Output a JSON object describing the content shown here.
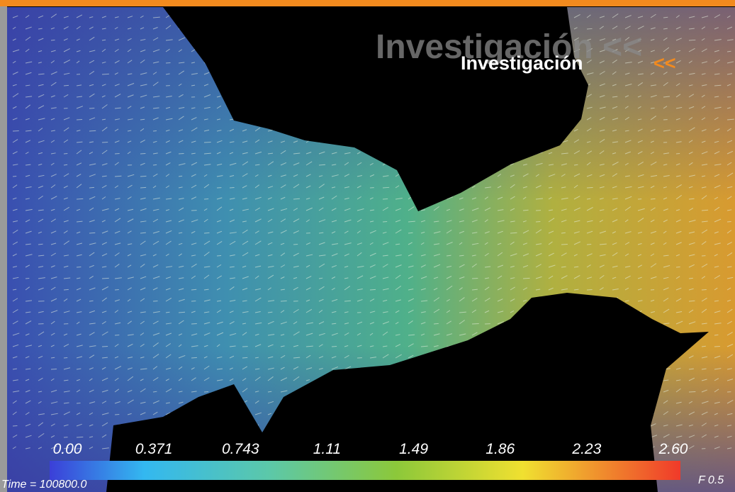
{
  "header": {
    "title_shadow": "Investigación <<",
    "title": "Investigación",
    "arrows": "<<"
  },
  "colorbar": {
    "ticks": [
      "0.00",
      "0.371",
      "0.743",
      "1.11",
      "1.49",
      "1.86",
      "2.23",
      "2.60"
    ]
  },
  "footer": {
    "time": "Time = 100800.0",
    "factor": "F 0.5"
  }
}
